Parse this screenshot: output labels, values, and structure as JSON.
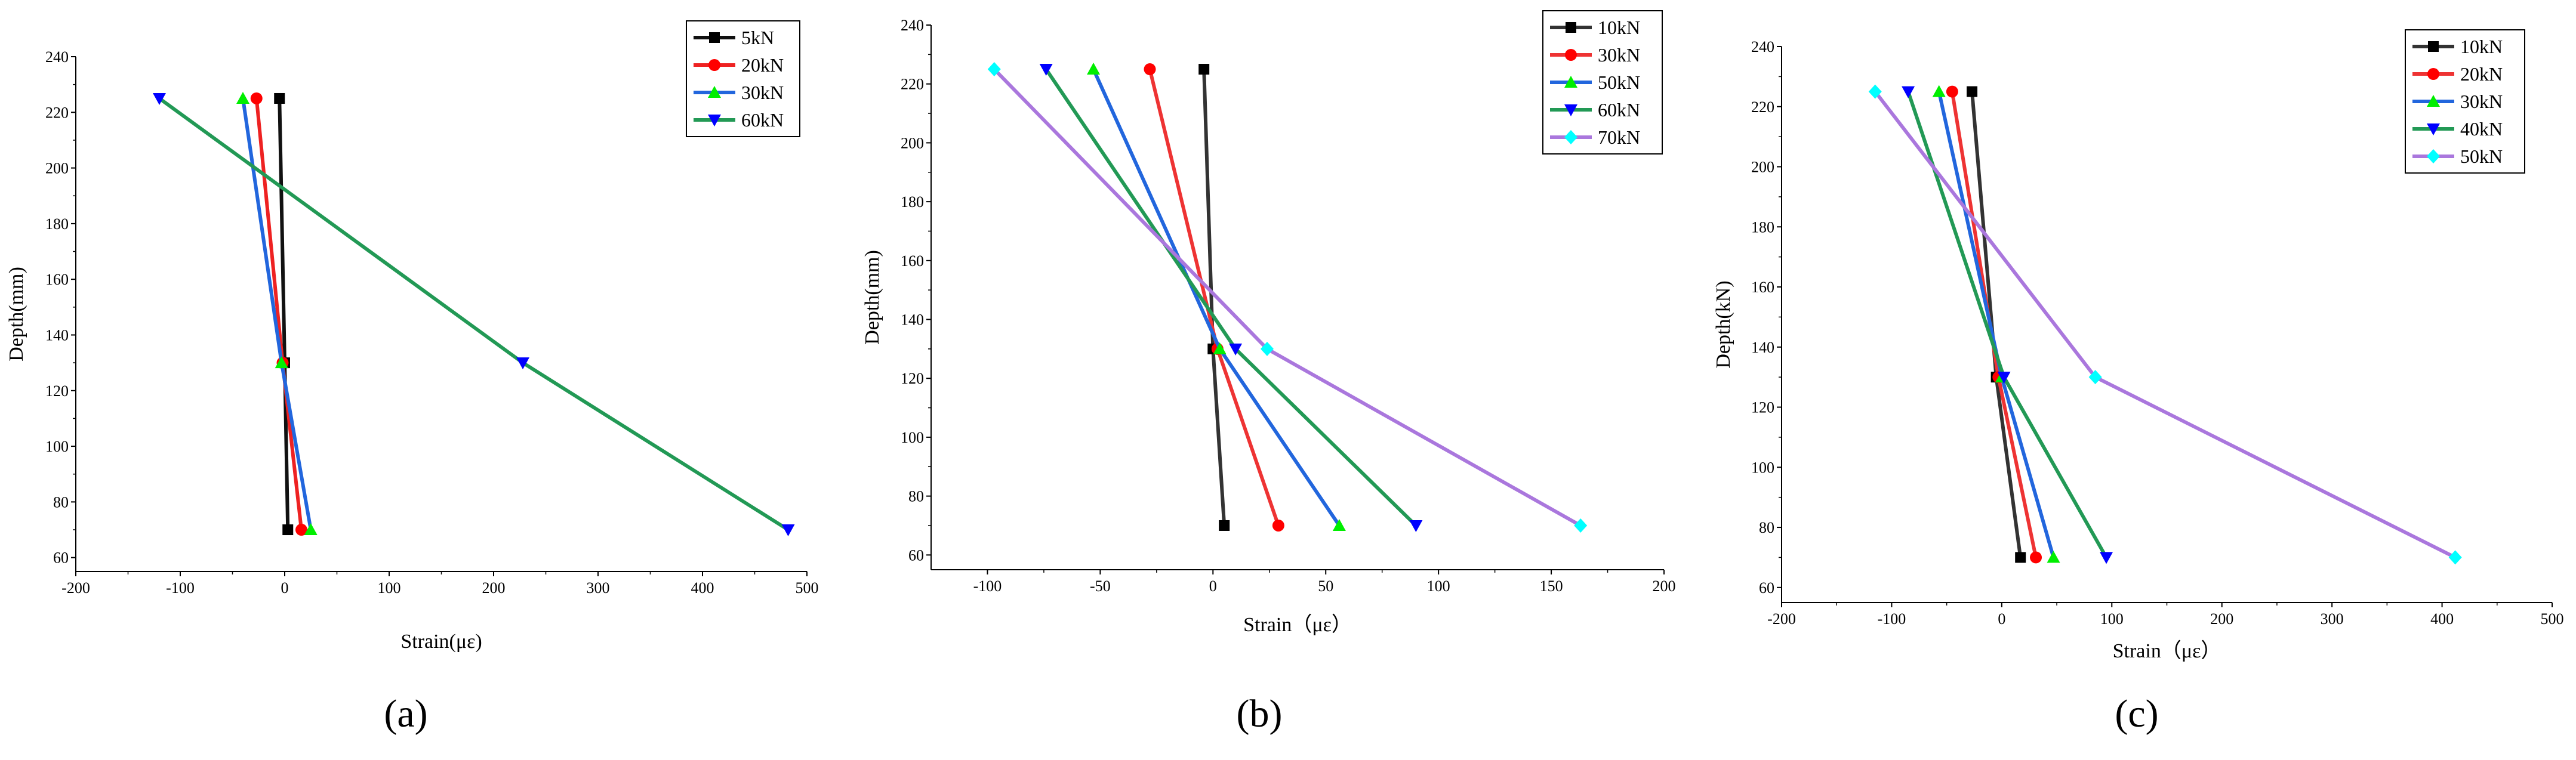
{
  "chart_data": [
    {
      "type": "line",
      "panel_label": "(a)",
      "xlabel": "Strain(με)",
      "ylabel": "Depth(mm)",
      "xlim": [
        -200,
        500
      ],
      "ylim": [
        55,
        240
      ],
      "xticks": [
        "-200",
        "-100",
        "0",
        "100",
        "200",
        "300",
        "400",
        "500"
      ],
      "yticks": [
        "60",
        "80",
        "100",
        "120",
        "140",
        "160",
        "180",
        "200",
        "220",
        "240"
      ],
      "grid": false,
      "legend_position": "top-right",
      "series": [
        {
          "name": "5kN",
          "color": "#111111",
          "marker": "square",
          "points": [
            [
              -5,
              225
            ],
            [
              0,
              130
            ],
            [
              3,
              70
            ]
          ]
        },
        {
          "name": "20kN",
          "color": "#ee2222",
          "marker": "circle",
          "points": [
            [
              -27,
              225
            ],
            [
              -2,
              130
            ],
            [
              16,
              70
            ]
          ]
        },
        {
          "name": "30kN",
          "color": "#2266dd",
          "marker": "triangle-up",
          "points": [
            [
              -40,
              225
            ],
            [
              -3,
              130
            ],
            [
              25,
              70
            ]
          ]
        },
        {
          "name": "60kN",
          "color": "#229955",
          "marker": "triangle-down",
          "points": [
            [
              -120,
              225
            ],
            [
              228,
              130
            ],
            [
              482,
              70
            ]
          ]
        }
      ],
      "marker_colors": {
        "square": "#000000",
        "circle": "#ff0000",
        "triangle-up": "#00ee00",
        "triangle-down": "#0000ff",
        "diamond": "#00ffff"
      }
    },
    {
      "type": "line",
      "panel_label": "(b)",
      "xlabel": "Strain（με）",
      "ylabel": "Depth(mm)",
      "xlim": [
        -125,
        200
      ],
      "ylim": [
        55,
        240
      ],
      "xticks": [
        "-100",
        "-50",
        "0",
        "50",
        "100",
        "150",
        "200"
      ],
      "yticks": [
        "60",
        "80",
        "100",
        "120",
        "140",
        "160",
        "180",
        "200",
        "220",
        "240"
      ],
      "grid": false,
      "legend_position": "top-right",
      "series": [
        {
          "name": "10kN",
          "color": "#333333",
          "marker": "square",
          "points": [
            [
              -4,
              225
            ],
            [
              0,
              130
            ],
            [
              5,
              70
            ]
          ]
        },
        {
          "name": "30kN",
          "color": "#ee3333",
          "marker": "circle",
          "points": [
            [
              -28,
              225
            ],
            [
              2,
              130
            ],
            [
              29,
              70
            ]
          ]
        },
        {
          "name": "50kN",
          "color": "#2266dd",
          "marker": "triangle-up",
          "points": [
            [
              -53,
              225
            ],
            [
              3,
              130
            ],
            [
              56,
              70
            ]
          ]
        },
        {
          "name": "60kN",
          "color": "#229955",
          "marker": "triangle-down",
          "points": [
            [
              -74,
              225
            ],
            [
              10,
              130
            ],
            [
              90,
              70
            ]
          ]
        },
        {
          "name": "70kN",
          "color": "#aa77dd",
          "marker": "diamond",
          "points": [
            [
              -97,
              225
            ],
            [
              24,
              130
            ],
            [
              163,
              70
            ]
          ]
        }
      ],
      "marker_colors": {
        "square": "#000000",
        "circle": "#ff0000",
        "triangle-up": "#00ee00",
        "triangle-down": "#0000ff",
        "diamond": "#00ffff"
      }
    },
    {
      "type": "line",
      "panel_label": "(c)",
      "xlabel": "Strain（με）",
      "ylabel": "Depth(kN)",
      "xlim": [
        -200,
        500
      ],
      "ylim": [
        55,
        240
      ],
      "xticks": [
        "-200",
        "-100",
        "0",
        "100",
        "200",
        "300",
        "400",
        "500"
      ],
      "yticks": [
        "60",
        "80",
        "100",
        "120",
        "140",
        "160",
        "180",
        "200",
        "220",
        "240"
      ],
      "grid": false,
      "legend_position": "top-right",
      "series": [
        {
          "name": "10kN",
          "color": "#333333",
          "marker": "square",
          "points": [
            [
              -27,
              225
            ],
            [
              -5,
              130
            ],
            [
              17,
              70
            ]
          ]
        },
        {
          "name": "20kN",
          "color": "#ee3333",
          "marker": "circle",
          "points": [
            [
              -45,
              225
            ],
            [
              -3,
              130
            ],
            [
              31,
              70
            ]
          ]
        },
        {
          "name": "30kN",
          "color": "#2266dd",
          "marker": "triangle-up",
          "points": [
            [
              -57,
              225
            ],
            [
              0,
              130
            ],
            [
              47,
              70
            ]
          ]
        },
        {
          "name": "40kN",
          "color": "#229955",
          "marker": "triangle-down",
          "points": [
            [
              -85,
              225
            ],
            [
              2,
              130
            ],
            [
              95,
              70
            ]
          ]
        },
        {
          "name": "50kN",
          "color": "#aa77dd",
          "marker": "diamond",
          "points": [
            [
              -115,
              225
            ],
            [
              85,
              130
            ],
            [
              412,
              70
            ]
          ]
        }
      ],
      "marker_colors": {
        "square": "#000000",
        "circle": "#ff0000",
        "triangle-up": "#00ee00",
        "triangle-down": "#0000ff",
        "diamond": "#00ffff"
      }
    }
  ]
}
